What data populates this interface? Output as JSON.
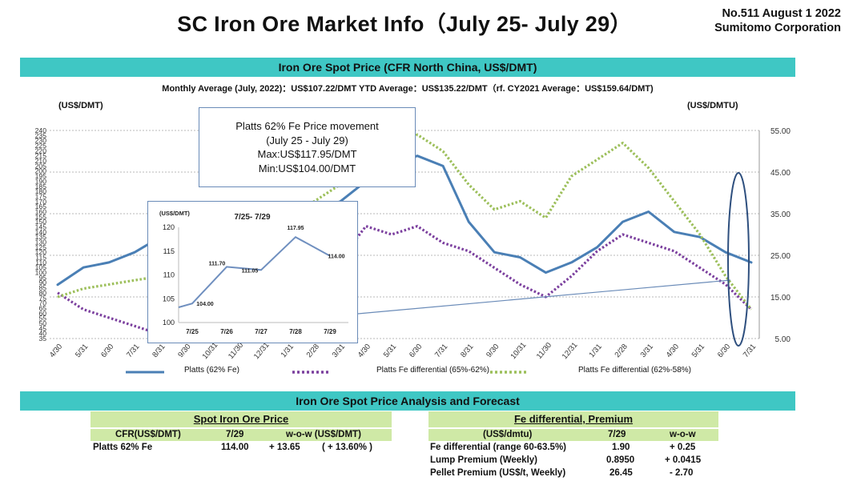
{
  "header": {
    "title": "SC Iron Ore Market Info（July 25- July 29）",
    "issue_line": "No.511 August 1 2022",
    "company": "Sumitomo Corporation"
  },
  "spot_section": {
    "band_title": "Iron Ore Spot Price (CFR North China, US$/DMT)",
    "averages_line": "Monthly Average (July, 2022)：US$107.22/DMT  YTD Average：US$135.22/DMT（rf. CY2021 Average：US$159.64/DMT)",
    "left_unit": "(US$/DMT)",
    "right_unit": "(US$/DMTU)"
  },
  "callout": {
    "line1": "Platts 62% Fe Price movement",
    "line2": "(July 25 - July 29)",
    "line3": "Max:US$117.95/DMT",
    "line4": "Min:US$104.00/DMT"
  },
  "chart_data": [
    {
      "type": "line",
      "left_axis": {
        "unit": "(US$/DMT)",
        "min": 35,
        "max": 240,
        "step": 5
      },
      "right_axis": {
        "unit": "(US$/DMTU)",
        "min": 5,
        "max": 55,
        "ticks": [
          "55.00",
          "45.00",
          "35.00",
          "25.00",
          "15.00",
          "5.00"
        ]
      },
      "x": [
        "4/30",
        "5/31",
        "6/30",
        "7/31",
        "8/31",
        "9/30",
        "10/31",
        "11/30",
        "12/31",
        "1/31",
        "2/28",
        "3/31",
        "4/30",
        "5/31",
        "6/30",
        "7/31",
        "8/31",
        "9/30",
        "10/31",
        "11/30",
        "12/31",
        "1/31",
        "2/28",
        "3/31",
        "4/30",
        "5/31",
        "6/30",
        "7/31"
      ],
      "series": [
        {
          "name": "Platts (62% Fe)",
          "axis": "left",
          "color": "#4a7fb5",
          "style": "solid",
          "values": [
            88,
            105,
            110,
            120,
            135,
            150,
            165,
            160,
            158,
            155,
            162,
            170,
            190,
            205,
            215,
            205,
            150,
            120,
            115,
            100,
            110,
            125,
            150,
            160,
            140,
            135,
            120,
            110
          ]
        },
        {
          "name": "Platts Fe differential (65%-62%)",
          "axis": "right",
          "color": "#7b3f9e",
          "style": "dotted",
          "values": [
            16,
            12,
            10,
            8,
            6,
            6,
            8,
            10,
            12,
            16,
            20,
            24,
            32,
            30,
            32,
            28,
            26,
            22,
            18,
            15,
            20,
            26,
            30,
            28,
            26,
            22,
            18,
            12
          ]
        },
        {
          "name": "Platts Fe differential (62%-58%)",
          "axis": "right",
          "color": "#9cbf5a",
          "style": "dotted",
          "values": [
            15,
            17,
            18,
            19,
            20,
            22,
            24,
            26,
            30,
            34,
            38,
            42,
            48,
            50,
            54,
            50,
            42,
            36,
            38,
            34,
            44,
            48,
            52,
            46,
            38,
            30,
            20,
            12
          ]
        }
      ]
    },
    {
      "type": "line",
      "title": "7/25- 7/29",
      "ylabel": "(US$/DMT)",
      "ylim": [
        100,
        120
      ],
      "yticks": [
        "120",
        "115",
        "110",
        "105",
        "100"
      ],
      "categories": [
        "7/25",
        "7/26",
        "7/27",
        "7/28",
        "7/29"
      ],
      "values": [
        104.0,
        111.7,
        111.05,
        117.95,
        114.0
      ],
      "labels": [
        "104.00",
        "111.70",
        "111.05",
        "117.95",
        "114.00"
      ]
    }
  ],
  "analysis": {
    "band_title": "Iron Ore Spot Price Analysis and Forecast",
    "spot_table": {
      "title": "Spot Iron Ore Price",
      "col_cfr": "CFR(US$/DMT)",
      "col_date": "7/29",
      "col_wow": "w-o-w (US$/DMT)",
      "row_label": "Platts 62% Fe",
      "row_value": "114.00",
      "row_wow": "+ 13.65",
      "row_pct": "( + 13.60% )"
    },
    "fe_table": {
      "title": "Fe differential, Premium",
      "col_unit": "(US$/dmtu)",
      "col_date": "7/29",
      "col_wow": "w-o-w",
      "rows": [
        {
          "label": "Fe differential (range 60-63.5%)",
          "value": "1.90",
          "wow": "+ 0.25"
        },
        {
          "label": "Lump Premium (Weekly)",
          "value": "0.8950",
          "wow": "+ 0.0415"
        },
        {
          "label": "Pellet Premium (US$/t, Weekly)",
          "value": "26.45",
          "wow": "- 2.70"
        }
      ]
    }
  },
  "colors": {
    "band": "#3fc7c4",
    "table_header": "#cfe9a6",
    "platts": "#4a7fb5",
    "diff65": "#7b3f9e",
    "diff58": "#9cbf5a"
  }
}
